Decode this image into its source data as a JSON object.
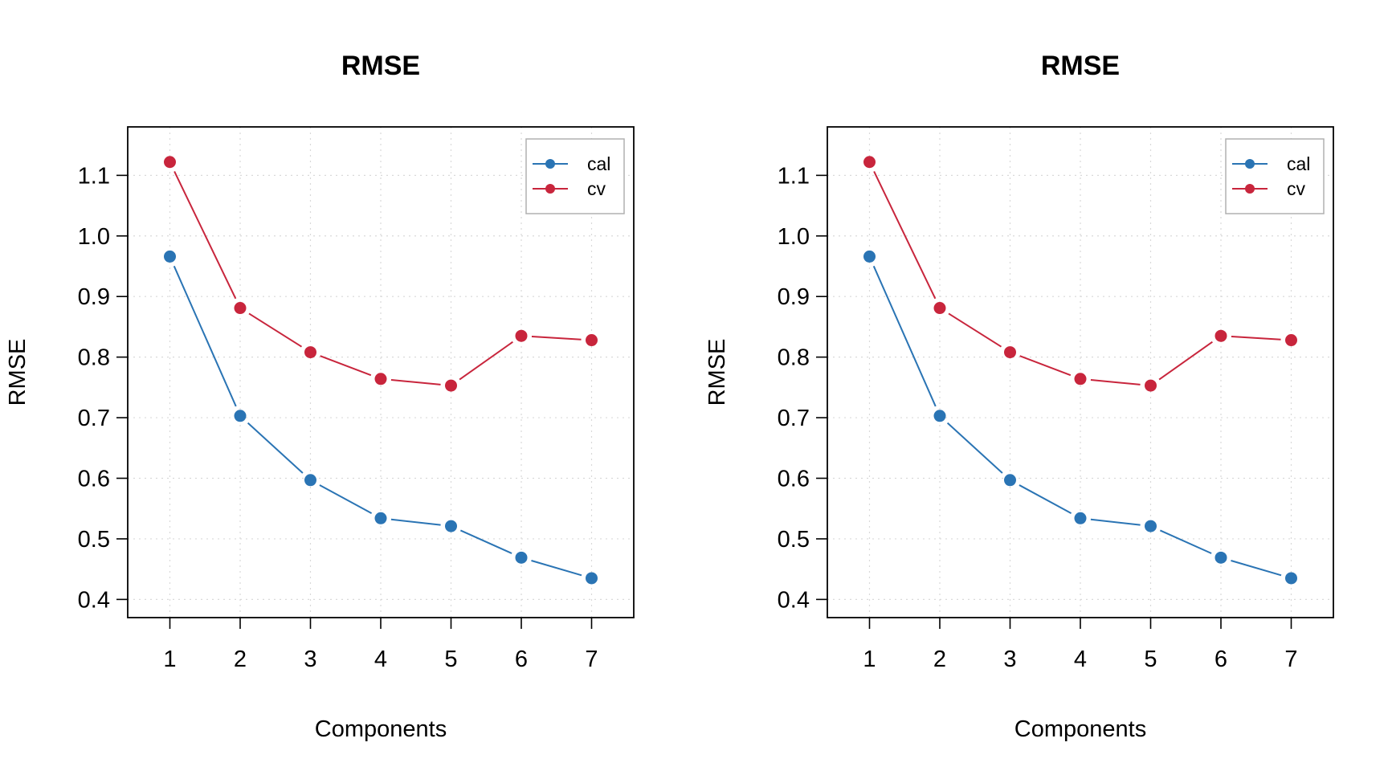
{
  "chart_data": [
    {
      "type": "line",
      "title": "RMSE",
      "xlabel": "Components",
      "ylabel": "RMSE",
      "x": [
        1,
        2,
        3,
        4,
        5,
        6,
        7
      ],
      "x_ticks": [
        "1",
        "2",
        "3",
        "4",
        "5",
        "6",
        "7"
      ],
      "y_ticks": [
        "0.4",
        "0.5",
        "0.6",
        "0.7",
        "0.8",
        "0.9",
        "1.0",
        "1.1"
      ],
      "xlim": [
        0.4,
        7.6
      ],
      "ylim": [
        0.37,
        1.18
      ],
      "grid": true,
      "legend_position": "top-right",
      "series": [
        {
          "name": "cal",
          "color": "#2a74b4",
          "values": [
            0.966,
            0.703,
            0.597,
            0.534,
            0.521,
            0.469,
            0.435
          ]
        },
        {
          "name": "cv",
          "color": "#c8253c",
          "values": [
            1.122,
            0.881,
            0.808,
            0.764,
            0.753,
            0.835,
            0.828
          ]
        }
      ]
    },
    {
      "type": "line",
      "title": "RMSE",
      "xlabel": "Components",
      "ylabel": "RMSE",
      "x": [
        1,
        2,
        3,
        4,
        5,
        6,
        7
      ],
      "x_ticks": [
        "1",
        "2",
        "3",
        "4",
        "5",
        "6",
        "7"
      ],
      "y_ticks": [
        "0.4",
        "0.5",
        "0.6",
        "0.7",
        "0.8",
        "0.9",
        "1.0",
        "1.1"
      ],
      "xlim": [
        0.4,
        7.6
      ],
      "ylim": [
        0.37,
        1.18
      ],
      "grid": true,
      "legend_position": "top-right",
      "series": [
        {
          "name": "cal",
          "color": "#2a74b4",
          "values": [
            0.966,
            0.703,
            0.597,
            0.534,
            0.521,
            0.469,
            0.435
          ]
        },
        {
          "name": "cv",
          "color": "#c8253c",
          "values": [
            1.122,
            0.881,
            0.808,
            0.764,
            0.753,
            0.835,
            0.828
          ]
        }
      ]
    }
  ]
}
